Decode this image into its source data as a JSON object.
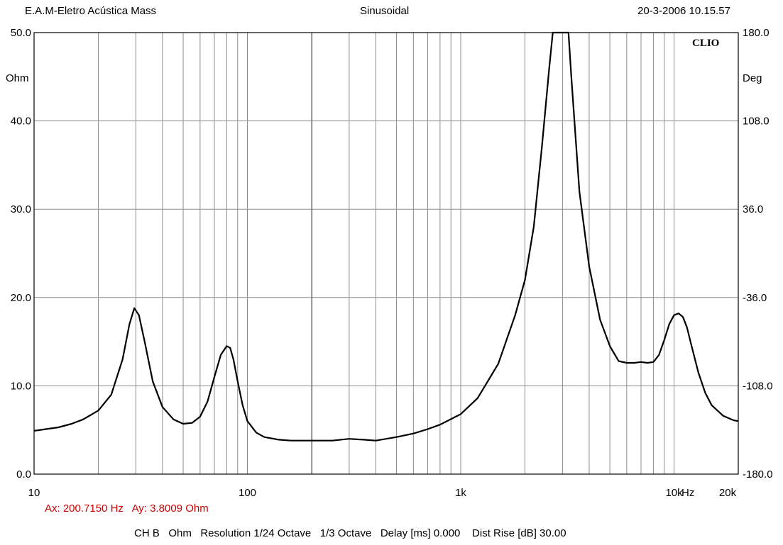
{
  "header": {
    "left": "E.A.M-Eletro Acústica Mass",
    "center": "Sinusoidal",
    "right": "20-3-2006 10.15.57"
  },
  "brand": "CLIO",
  "cursor": {
    "text": "Ax: 200.7150 Hz   Ay: 3.8009 Ohm",
    "x": 200.715,
    "y": 3.8009,
    "color": "#cc0000"
  },
  "footer": "CH B   Ohm   Resolution 1/24 Octave   1/3 Octave   Delay [ms] 0.000    Dist Rise [dB] 30.00",
  "colors": {
    "curve": "#000000",
    "grid": "#8c8c8c",
    "cursor_line": "#b22222",
    "frame": "#000000"
  },
  "chart_data": {
    "type": "line",
    "x_scale": "log",
    "xlim": [
      10,
      20000
    ],
    "ylim": [
      0,
      50
    ],
    "ylim_right": [
      -180,
      180
    ],
    "grid": true,
    "yunit_left": "Ohm",
    "yunit_right": "Deg",
    "xunit": "Hz",
    "y_ticks_left": [
      "0.0",
      "10.0",
      "20.0",
      "30.0",
      "40.0",
      "50.0"
    ],
    "y_ticks_right": [
      "-180.0",
      "-108.0",
      "-36.0",
      "36.0",
      "108.0",
      "180.0"
    ],
    "x_ticks": [
      {
        "value": 10,
        "label": "10"
      },
      {
        "value": 100,
        "label": "100"
      },
      {
        "value": 1000,
        "label": "1k"
      },
      {
        "value": 10000,
        "label": "10k"
      },
      {
        "value": 20000,
        "label": "20k"
      }
    ],
    "series": [
      {
        "color": "#000000",
        "x": [
          10,
          13,
          15,
          17,
          20,
          23,
          26,
          28,
          29.5,
          31,
          33,
          36,
          40,
          45,
          50,
          55,
          60,
          65,
          70,
          75,
          80,
          83,
          86,
          90,
          95,
          100,
          110,
          120,
          140,
          160,
          200,
          250,
          300,
          350,
          400,
          500,
          600,
          700,
          800,
          1000,
          1200,
          1500,
          1800,
          2000,
          2200,
          2400,
          2600,
          2700,
          2750,
          3200,
          3300,
          3600,
          4000,
          4500,
          5000,
          5500,
          6000,
          6500,
          7000,
          7500,
          8000,
          8500,
          9000,
          9500,
          10000,
          10500,
          11000,
          11500,
          12000,
          13000,
          14000,
          15000,
          17000,
          19000,
          20000
        ],
        "y": [
          4.9,
          5.3,
          5.7,
          6.2,
          7.2,
          9.0,
          13.0,
          17.0,
          18.8,
          18.0,
          15.0,
          10.5,
          7.6,
          6.2,
          5.7,
          5.8,
          6.5,
          8.2,
          11.0,
          13.5,
          14.5,
          14.3,
          13.0,
          10.5,
          7.8,
          6.0,
          4.7,
          4.2,
          3.9,
          3.8,
          3.8,
          3.8,
          4.0,
          3.9,
          3.8,
          4.2,
          4.6,
          5.1,
          5.6,
          6.8,
          8.6,
          12.5,
          18.0,
          22.0,
          28.0,
          37.0,
          46.0,
          50.0,
          50.0,
          50.0,
          45.0,
          32.0,
          23.5,
          17.5,
          14.5,
          12.8,
          12.6,
          12.6,
          12.7,
          12.6,
          12.7,
          13.5,
          15.2,
          17.0,
          18.0,
          18.2,
          17.8,
          16.6,
          14.8,
          11.5,
          9.2,
          7.8,
          6.6,
          6.1,
          6.0
        ]
      }
    ],
    "cursor_x": 200.715
  }
}
